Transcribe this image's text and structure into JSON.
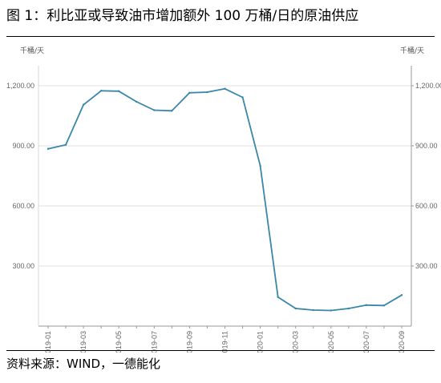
{
  "figure": {
    "title": "图 1：利比亚或导致油市增加额外 100 万桶/日的原油供应",
    "source": "资料来源：WIND，一德能化"
  },
  "chart_data": {
    "type": "line",
    "ylabel_left": "千桶/天",
    "ylabel_right": "千桶/天",
    "ylim": [
      0,
      1300
    ],
    "yticks": [
      300,
      600,
      900,
      1200
    ],
    "ytick_labels": [
      "300.00",
      "600.00",
      "900.00",
      "1,200.00"
    ],
    "grid": true,
    "legend": "none",
    "line_color": "#3a87a8",
    "xtick_labels": [
      "2019-01",
      "2019-03",
      "2019-05",
      "2019-07",
      "2019-09",
      "2019-11",
      "2020-01",
      "2020-03",
      "2020-05",
      "2020-07",
      "2020-09"
    ],
    "x": [
      "2019-01",
      "2019-02",
      "2019-03",
      "2019-04",
      "2019-05",
      "2019-06",
      "2019-07",
      "2019-08",
      "2019-09",
      "2019-10",
      "2019-11",
      "2019-12",
      "2020-01",
      "2020-02",
      "2020-03",
      "2020-04",
      "2020-05",
      "2020-06",
      "2020-07",
      "2020-08",
      "2020-09"
    ],
    "values": [
      885,
      905,
      1105,
      1175,
      1173,
      1120,
      1078,
      1075,
      1165,
      1168,
      1185,
      1142,
      800,
      145,
      88,
      80,
      78,
      88,
      105,
      103,
      155
    ]
  }
}
